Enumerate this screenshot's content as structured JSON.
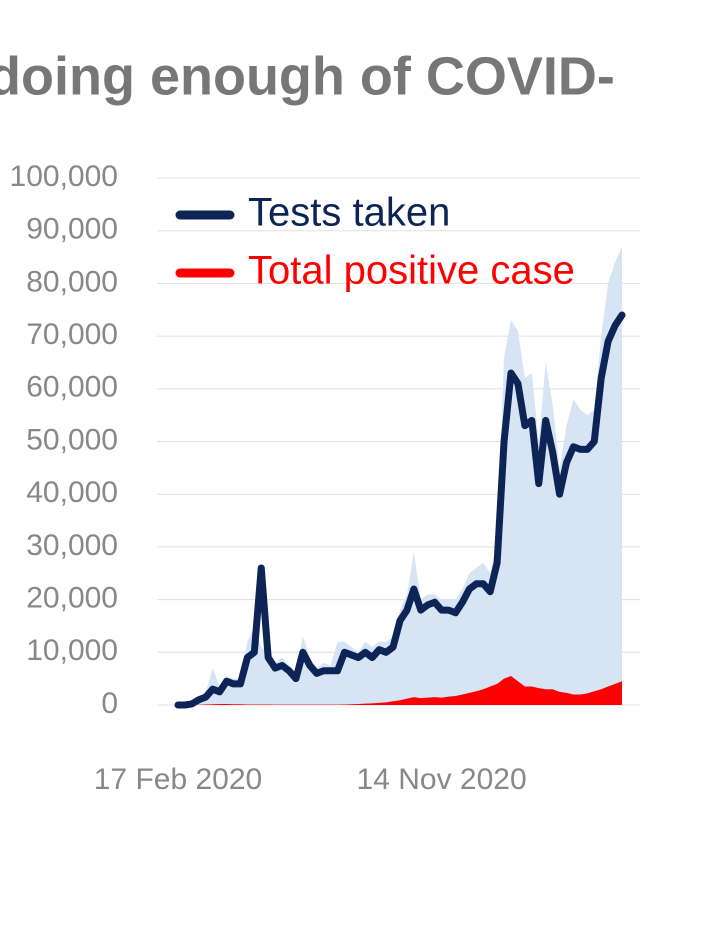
{
  "chart_data": {
    "type": "line",
    "title": "doing enough of COVID-",
    "categories": [
      "17 Feb 2020",
      null,
      null,
      null,
      null,
      null,
      null,
      null,
      null,
      null,
      null,
      null,
      null,
      null,
      null,
      null,
      null,
      null,
      null,
      null,
      null,
      null,
      null,
      null,
      null,
      null,
      null,
      null,
      null,
      null,
      null,
      null,
      null,
      null,
      null,
      null,
      null,
      null,
      "14 Nov 2020",
      null,
      null,
      null,
      null,
      null,
      null,
      null,
      null,
      null,
      null,
      null,
      null,
      null,
      null,
      null,
      null,
      null,
      null,
      null,
      null,
      null,
      null,
      null,
      null,
      null,
      null
    ],
    "series": [
      {
        "color": "#d6e4f3",
        "style": "area",
        "values": [
          0,
          0,
          300,
          1500,
          2500,
          7000,
          3500,
          5500,
          5000,
          5000,
          12000,
          15000,
          11000,
          10000,
          8000,
          9000,
          7500,
          6000,
          13000,
          9000,
          7000,
          8000,
          7500,
          12000,
          12000,
          11000,
          10000,
          12000,
          11000,
          12000,
          12000,
          13000,
          18000,
          21000,
          29000,
          20000,
          21000,
          21000,
          20000,
          20000,
          20000,
          22000,
          25000,
          26000,
          27000,
          25000,
          31000,
          66000,
          73000,
          71000,
          62000,
          63000,
          50000,
          65000,
          57000,
          45000,
          53000,
          58000,
          56000,
          55000,
          56000,
          70000,
          80000,
          84000,
          87000
        ]
      },
      {
        "name": "Tests taken",
        "color": "#0d2457",
        "values": [
          0,
          0,
          200,
          1000,
          1500,
          3000,
          2500,
          4500,
          4000,
          4000,
          9000,
          10000,
          26000,
          9000,
          7000,
          7500,
          6500,
          5000,
          10000,
          7500,
          6000,
          6500,
          6500,
          6500,
          10000,
          9500,
          9000,
          10000,
          9000,
          10500,
          10000,
          11000,
          16000,
          18000,
          22000,
          18000,
          19000,
          19500,
          18000,
          18000,
          17500,
          19500,
          22000,
          23000,
          23000,
          21500,
          27000,
          50000,
          63000,
          61000,
          53000,
          54000,
          42000,
          54000,
          48000,
          40000,
          46000,
          49000,
          48500,
          48500,
          50000,
          62000,
          69000,
          72000,
          74000
        ]
      },
      {
        "name": "Total positive case",
        "color": "#ff0000",
        "style": "area",
        "values": [
          0,
          0,
          0,
          50,
          100,
          150,
          200,
          200,
          150,
          150,
          100,
          100,
          100,
          100,
          80,
          80,
          80,
          60,
          60,
          60,
          60,
          60,
          60,
          80,
          100,
          150,
          200,
          250,
          300,
          400,
          500,
          700,
          900,
          1200,
          1500,
          1300,
          1400,
          1500,
          1400,
          1600,
          1700,
          2000,
          2300,
          2600,
          3000,
          3500,
          4000,
          5000,
          5500,
          4500,
          3500,
          3500,
          3200,
          3000,
          3000,
          2500,
          2300,
          2000,
          2000,
          2200,
          2600,
          3000,
          3500,
          4000,
          4500
        ]
      }
    ],
    "ylim": [
      0,
      100000
    ],
    "yticks": [
      0,
      {
        "value": 10000,
        "label": "10,000"
      },
      {
        "value": 20000,
        "label": "20,000"
      },
      {
        "value": 30000,
        "label": "30,000"
      },
      {
        "value": 40000,
        "label": "40,000"
      },
      {
        "value": 50000,
        "label": "50,000"
      },
      {
        "value": 60000,
        "label": "60,000"
      },
      {
        "value": 70000,
        "label": "70,000"
      },
      {
        "value": 80000,
        "label": "80,000"
      },
      {
        "value": 90000,
        "label": "90,000"
      },
      {
        "value": 100000,
        "label": "100,000"
      }
    ],
    "grid": true,
    "legend": "upper left"
  }
}
